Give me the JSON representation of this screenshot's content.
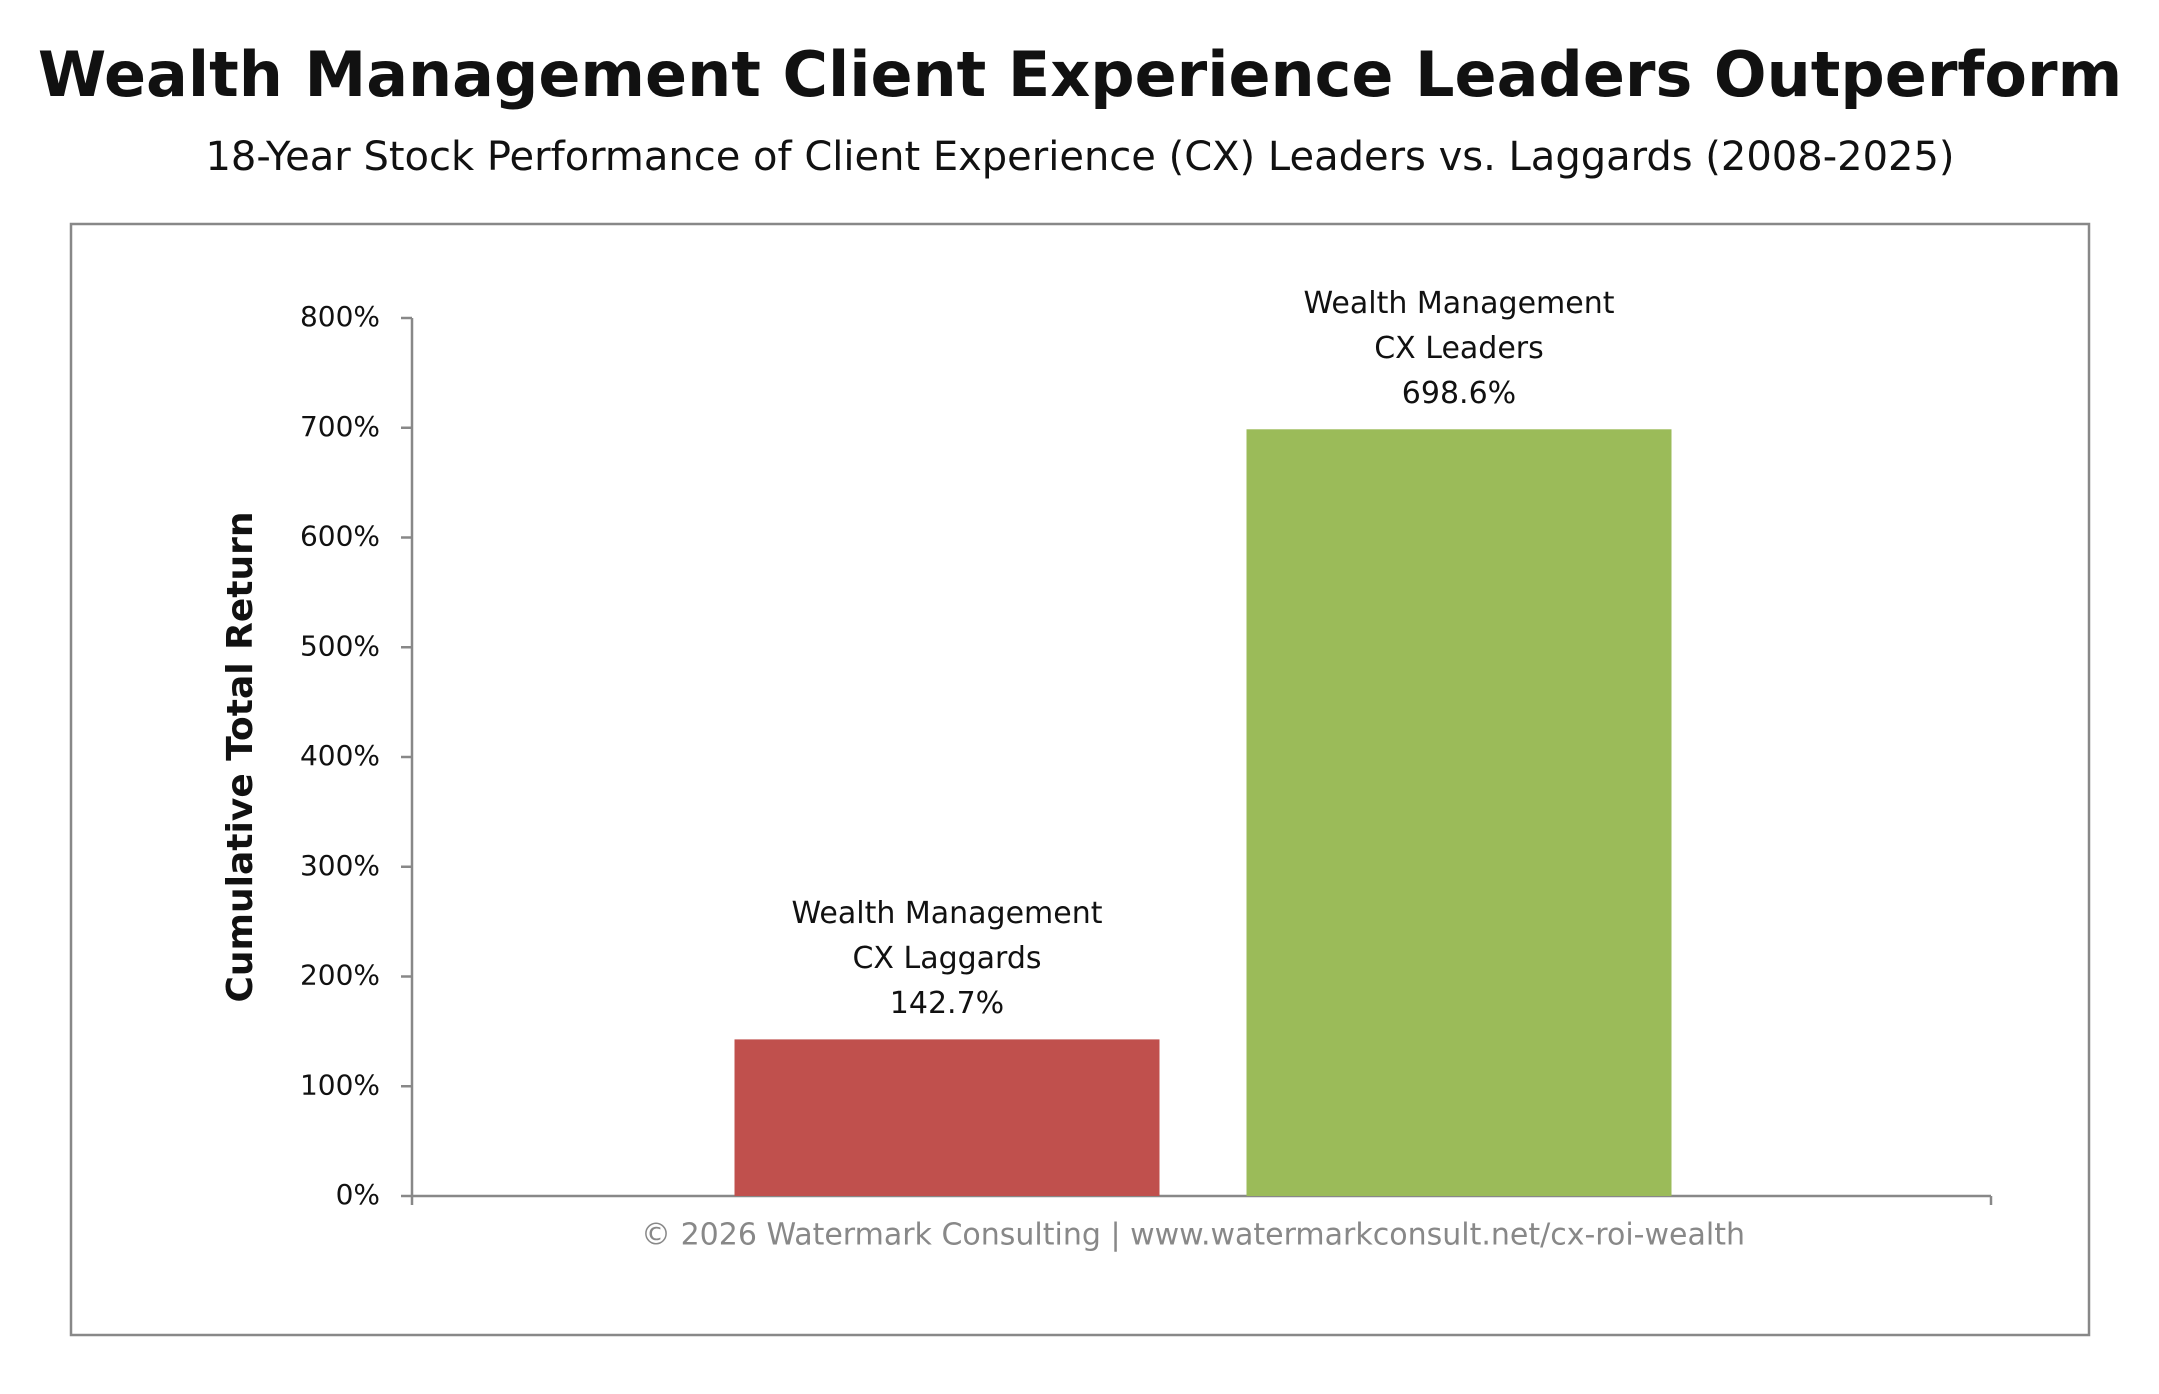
{
  "chart_data": {
    "type": "bar",
    "title": "Wealth Management Client Experience Leaders Outperform",
    "subtitle": "18-Year Stock Performance of Client Experience (CX) Leaders vs. Laggards (2008-2025)",
    "y_label": "Cumulative Total Return",
    "categories": [
      [
        "Wealth Management",
        "CX Laggards"
      ],
      [
        "Wealth Management",
        "CX Leaders"
      ]
    ],
    "values": [
      142.7,
      698.6
    ],
    "value_labels": [
      "142.7%",
      "698.6%"
    ],
    "colors": [
      "#c0504d",
      "#9bbb59"
    ],
    "ylim": [
      0,
      800
    ],
    "yticks": [
      {
        "value": 0,
        "label": "0%"
      },
      {
        "value": 100,
        "label": "100%"
      },
      {
        "value": 200,
        "label": "200%"
      },
      {
        "value": 300,
        "label": "300%"
      },
      {
        "value": 400,
        "label": "400%"
      },
      {
        "value": 500,
        "label": "500%"
      },
      {
        "value": 600,
        "label": "600%"
      },
      {
        "value": 700,
        "label": "700%"
      },
      {
        "value": 800,
        "label": "800%"
      }
    ],
    "footer": "© 2026 Watermark Consulting | www.watermarkconsult.net/cx-roi-wealth"
  }
}
